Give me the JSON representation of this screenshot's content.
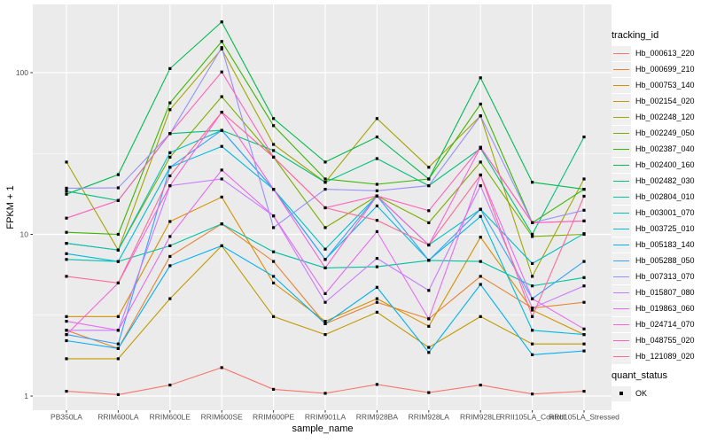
{
  "chart_data": {
    "type": "line",
    "xlabel": "sample_name",
    "ylabel": "FPKM + 1",
    "y_scale": "log10",
    "y_ticks": [
      "1",
      "10",
      "100"
    ],
    "ylim": [
      0.8,
      250
    ],
    "grid": "on",
    "legend_position": "right",
    "legend_title": "tracking_id",
    "legend2_title": "quant_status",
    "quant_status_label": "OK",
    "point_shape": "filled-square-black",
    "panel_bg": "#ebebeb",
    "grid_color": "#ffffff",
    "categories": [
      "PB350LA",
      "RRIM600LA",
      "RRIM600LE",
      "RRIM600SE",
      "RRIM600PE",
      "RRIM901LA",
      "RRIM928BA",
      "RRIM928LA",
      "RRIM928LE",
      "RRII105LA_Control",
      "RRII105LA_Stressed"
    ],
    "series": [
      {
        "name": "Hb_000613_220",
        "color": "#F8766D",
        "values": [
          1.07,
          1.02,
          1.17,
          1.5,
          1.1,
          1.04,
          1.18,
          1.05,
          1.17,
          1.03,
          1.07
        ]
      },
      {
        "name": "Hb_000699_210",
        "color": "#EA8331",
        "values": [
          2.55,
          1.97,
          7.3,
          11.6,
          6.8,
          2.8,
          3.8,
          3.0,
          5.5,
          3.5,
          3.8
        ]
      },
      {
        "name": "Hb_000753_140",
        "color": "#D89000",
        "values": [
          3.1,
          3.1,
          12,
          17,
          5.0,
          2.9,
          4.0,
          2.7,
          9.6,
          3.4,
          2.4
        ]
      },
      {
        "name": "Hb_002154_020",
        "color": "#C09B00",
        "values": [
          1.7,
          1.7,
          4.0,
          8.5,
          3.1,
          2.4,
          3.3,
          2.0,
          3.1,
          2.1,
          2.1
        ]
      },
      {
        "name": "Hb_002248_120",
        "color": "#A3A500",
        "values": [
          28,
          8.0,
          59,
          140,
          36,
          21,
          52,
          26,
          54,
          5.5,
          22
        ]
      },
      {
        "name": "Hb_002249_050",
        "color": "#7CAE00",
        "values": [
          8.8,
          8.0,
          30,
          71,
          30,
          11,
          17.3,
          11.8,
          28,
          9.7,
          10
        ]
      },
      {
        "name": "Hb_002387_040",
        "color": "#39B600",
        "values": [
          10.3,
          10,
          65,
          156,
          47,
          22,
          20.4,
          22,
          64,
          11.8,
          19
        ]
      },
      {
        "name": "Hb_002400_160",
        "color": "#00BB4E",
        "values": [
          17.7,
          23.4,
          106,
          206,
          52,
          28,
          40,
          22,
          93,
          21,
          19
        ]
      },
      {
        "name": "Hb_002482_030",
        "color": "#00BF7D",
        "values": [
          18.5,
          16.2,
          42,
          44,
          33,
          21,
          29.4,
          20,
          34,
          10,
          40
        ]
      },
      {
        "name": "Hb_002804_010",
        "color": "#00C1A3",
        "values": [
          7.0,
          6.8,
          8.5,
          11.6,
          7.8,
          6.2,
          6.3,
          6.9,
          6.8,
          4.8,
          5.4
        ]
      },
      {
        "name": "Hb_003001_070",
        "color": "#00BFC4",
        "values": [
          8.8,
          8.0,
          32,
          44,
          19,
          8.1,
          17.3,
          8.6,
          14.3,
          6.6,
          10.1
        ]
      },
      {
        "name": "Hb_003725_010",
        "color": "#00BAE0",
        "values": [
          7.6,
          6.8,
          26,
          35,
          19,
          7.0,
          15,
          6.9,
          12.9,
          2.55,
          2.4
        ]
      },
      {
        "name": "Hb_005183_140",
        "color": "#00B0F6",
        "values": [
          2.2,
          1.97,
          6.4,
          8.5,
          5.5,
          2.8,
          4.7,
          1.86,
          4.9,
          1.8,
          1.9
        ]
      },
      {
        "name": "Hb_005288_050",
        "color": "#35A2FF",
        "values": [
          2.4,
          2.1,
          26,
          44,
          19,
          7.0,
          17.3,
          6.9,
          14.3,
          4.0,
          6.8
        ]
      },
      {
        "name": "Hb_007313_070",
        "color": "#9590FF",
        "values": [
          19.3,
          19.4,
          42,
          143,
          11,
          19,
          18.6,
          20,
          54,
          11.8,
          14.1
        ]
      },
      {
        "name": "Hb_015807_080",
        "color": "#C77CFF",
        "values": [
          2.55,
          2.55,
          20,
          22,
          13,
          3.8,
          7.1,
          4.5,
          20,
          3.5,
          4.8
        ]
      },
      {
        "name": "Hb_019863_060",
        "color": "#E76BF3",
        "values": [
          2.9,
          2.55,
          9.7,
          25,
          13,
          4.3,
          10.4,
          3.0,
          23.3,
          4.0,
          2.6
        ]
      },
      {
        "name": "Hb_024714_070",
        "color": "#FA62DB",
        "values": [
          2.4,
          5.0,
          20,
          57,
          19,
          6.2,
          17.3,
          8.6,
          34.5,
          11.8,
          12.1
        ]
      },
      {
        "name": "Hb_048755_020",
        "color": "#FF62BC",
        "values": [
          12.6,
          16.2,
          42,
          101,
          30,
          14.6,
          17.3,
          14,
          34.5,
          11.8,
          12.1
        ]
      },
      {
        "name": "Hb_121089_020",
        "color": "#FF6A98",
        "values": [
          5.5,
          5.0,
          23,
          57,
          30,
          14.6,
          12.2,
          8.6,
          23.3,
          3.1,
          17.2
        ]
      }
    ]
  }
}
